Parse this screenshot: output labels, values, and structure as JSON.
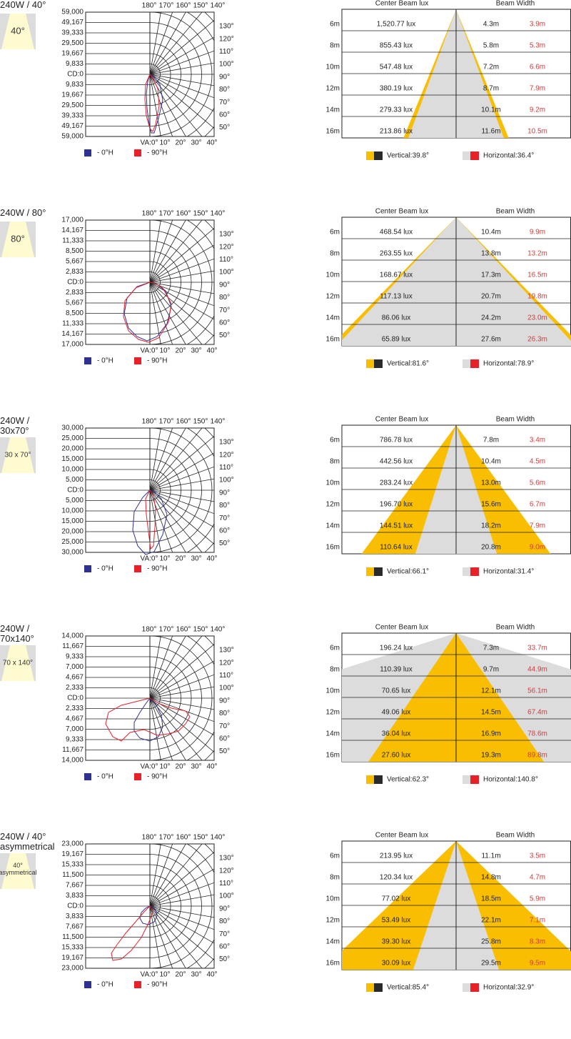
{
  "beam_header": {
    "center_label": "Center Beam lux",
    "width_label": "Beam Width"
  },
  "polar_common": {
    "top_angle_labels": [
      "180°",
      "170°",
      "160°",
      "150°",
      "140°"
    ],
    "bottom_angle_labels": [
      "VA:0°",
      "10°",
      "20°",
      "30°",
      "40°"
    ],
    "right_angle_labels": [
      "130°",
      "120°",
      "110°",
      "100°",
      "90°",
      "80°",
      "70°",
      "60°",
      "50°"
    ],
    "legend": [
      {
        "label": "- 0°H",
        "color": "#2e3192"
      },
      {
        "label": "- 90°H",
        "color": "#e8202a"
      }
    ]
  },
  "colors": {
    "vertical": "#f9be00",
    "horizontal": "#dcdcdc",
    "dark_swatch": "#2a2a2a",
    "red_swatch": "#e8202a",
    "red_text": "#d23c3c",
    "cone_bg": "#fffbd1"
  },
  "chart_data": [
    {
      "type": "table",
      "title": "240W / 40°",
      "icon_label": "40°",
      "polar_scale_labels": [
        "59,000",
        "49,167",
        "39,333",
        "29,500",
        "19,667",
        "9,833",
        "CD:0",
        "9,833",
        "19,667",
        "29,500",
        "39,333",
        "49,167",
        "59,000"
      ],
      "distances": [
        "6m",
        "8m",
        "10m",
        "12m",
        "14m",
        "16m"
      ],
      "center_lux": [
        "1,520.77 lux",
        "855.43 lux",
        "547.48 lux",
        "380.19 lux",
        "279.33 lux",
        "213.86 lux"
      ],
      "beam_width_v": [
        "4.3m",
        "5.8m",
        "7.2m",
        "8.7m",
        "10.1m",
        "11.6m"
      ],
      "beam_width_h": [
        "3.9m",
        "5.3m",
        "6.6m",
        "7.9m",
        "9.2m",
        "10.5m"
      ],
      "vertical_angle_label": "Vertical:39.8°",
      "horizontal_angle_label": "Horizontal:36.4°",
      "vertical_angle": 39.8,
      "horizontal_angle": 36.4
    },
    {
      "type": "table",
      "title": "240W / 80°",
      "icon_label": "80°",
      "polar_scale_labels": [
        "17,000",
        "14,167",
        "11,333",
        "8,500",
        "5,667",
        "2,833",
        "CD:0",
        "2,833",
        "5,667",
        "8,500",
        "11,333",
        "14,167",
        "17,000"
      ],
      "distances": [
        "6m",
        "8m",
        "10m",
        "12m",
        "14m",
        "16m"
      ],
      "center_lux": [
        "468.54 lux",
        "263.55 lux",
        "168.67 lux",
        "117.13 lux",
        "86.06 lux",
        "65.89 lux"
      ],
      "beam_width_v": [
        "10.4m",
        "13.8m",
        "17.3m",
        "20.7m",
        "24.2m",
        "27.6m"
      ],
      "beam_width_h": [
        "9.9m",
        "13.2m",
        "16.5m",
        "19.8m",
        "23.0m",
        "26.3m"
      ],
      "vertical_angle_label": "Vertical:81.6°",
      "horizontal_angle_label": "Horizontal:78.9°",
      "vertical_angle": 81.6,
      "horizontal_angle": 78.9
    },
    {
      "type": "table",
      "title": "240W / 30x70°",
      "icon_label": "30 x 70°",
      "polar_scale_labels": [
        "30,000",
        "25,000",
        "20,000",
        "15,000",
        "10,000",
        "5,000",
        "CD:0",
        "5,000",
        "10,000",
        "15,000",
        "20,000",
        "25,000",
        "30,000"
      ],
      "distances": [
        "6m",
        "8m",
        "10m",
        "12m",
        "14m",
        "16m"
      ],
      "center_lux": [
        "786.78 lux",
        "442.56 lux",
        "283.24 lux",
        "196.70 lux",
        "144.51 lux",
        "110.64 lux"
      ],
      "beam_width_v": [
        "7.8m",
        "10.4m",
        "13.0m",
        "15.6m",
        "18.2m",
        "20.8m"
      ],
      "beam_width_h": [
        "3.4m",
        "4.5m",
        "5.6m",
        "6.7m",
        "7.9m",
        "9.0m"
      ],
      "vertical_angle_label": "Vertical:66.1°",
      "horizontal_angle_label": "Horizontal:31.4°",
      "vertical_angle": 66.1,
      "horizontal_angle": 31.4
    },
    {
      "type": "table",
      "title": "240W / 70x140°",
      "icon_label": "70 x 140°",
      "polar_scale_labels": [
        "14,000",
        "11,667",
        "9,333",
        "7,000",
        "4,667",
        "2,333",
        "CD:0",
        "2,333",
        "4,667",
        "7,000",
        "9,333",
        "11,667",
        "14,000"
      ],
      "distances": [
        "6m",
        "8m",
        "10m",
        "12m",
        "14m",
        "16m"
      ],
      "center_lux": [
        "196.24 lux",
        "110.39 lux",
        "70.65 lux",
        "49.06 lux",
        "36.04 lux",
        "27.60 lux"
      ],
      "beam_width_v": [
        "7.3m",
        "9.7m",
        "12.1m",
        "14.5m",
        "16.9m",
        "19.3m"
      ],
      "beam_width_h": [
        "33.7m",
        "44.9m",
        "56.1m",
        "67.4m",
        "78.6m",
        "89.8m"
      ],
      "vertical_angle_label": "Vertical:62.3°",
      "horizontal_angle_label": "Horizontal:140.8°",
      "vertical_angle": 62.3,
      "horizontal_angle": 140.8
    },
    {
      "type": "table",
      "title": "240W / 40° asymmetrical",
      "icon_label": "40° asymmetrical",
      "polar_scale_labels": [
        "23,000",
        "19,167",
        "15,333",
        "11,500",
        "7,667",
        "3,833",
        "CD:0",
        "3,833",
        "7,667",
        "11,500",
        "15,333",
        "19,167",
        "23,000"
      ],
      "distances": [
        "6m",
        "8m",
        "10m",
        "12m",
        "14m",
        "16m"
      ],
      "center_lux": [
        "213.95 lux",
        "120.34 lux",
        "77.02 lux",
        "53.49 lux",
        "39.30 lux",
        "30.09 lux"
      ],
      "beam_width_v": [
        "11.1m",
        "14.8m",
        "18.5m",
        "22.1m",
        "25.8m",
        "29.5m"
      ],
      "beam_width_h": [
        "3.5m",
        "4.7m",
        "5.9m",
        "7.1m",
        "8.3m",
        "9.5m"
      ],
      "vertical_angle_label": "Vertical:85.4°",
      "horizontal_angle_label": "Horizontal:32.9°",
      "vertical_angle": 85.4,
      "horizontal_angle": 32.9
    }
  ]
}
